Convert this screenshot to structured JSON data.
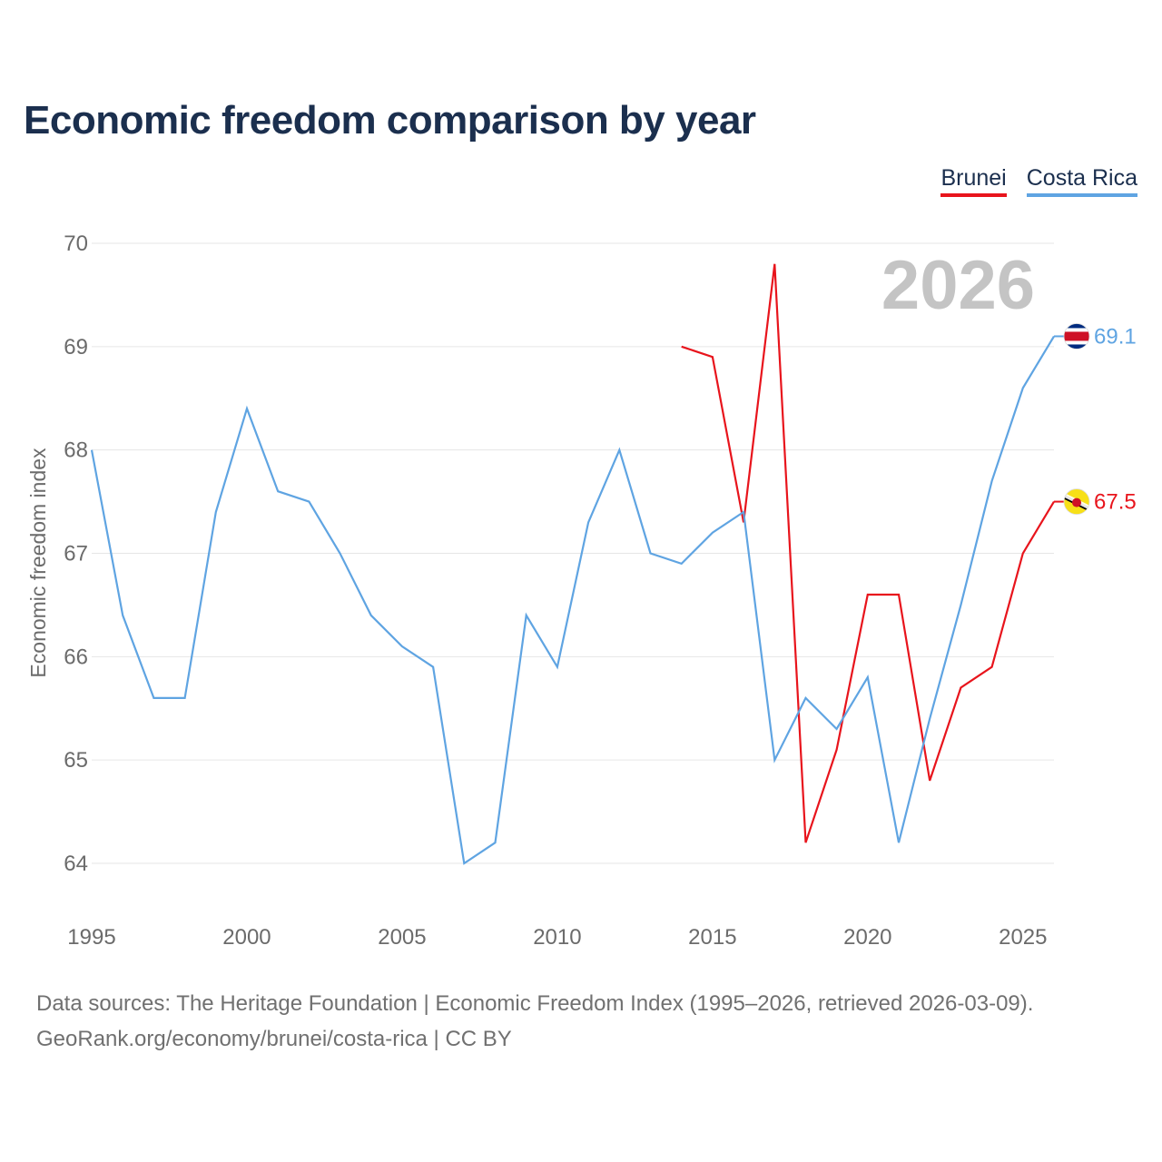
{
  "title": "Economic freedom comparison by year",
  "legend": {
    "brunei": "Brunei",
    "costa_rica": "Costa Rica"
  },
  "big_year": "2026",
  "footer": {
    "line1": "Data sources: The Heritage Foundation | Economic Freedom Index (1995–2026, retrieved 2026-03-09).",
    "line2": "GeoRank.org/economy/brunei/costa-rica | CC BY"
  },
  "colors": {
    "brunei": "#e8141c",
    "costa_rica": "#5fa4e2",
    "grid": "#e6e6e6",
    "title": "#1b2f4e"
  },
  "chart_data": {
    "type": "line",
    "title": "Economic freedom comparison by year",
    "xlabel": "",
    "ylabel": "Economic freedom index",
    "xlim": [
      1995,
      2026
    ],
    "ylim": [
      64,
      70
    ],
    "x_ticks": [
      "1995",
      "2000",
      "2005",
      "2010",
      "2015",
      "2020",
      "2025"
    ],
    "y_ticks": [
      "64",
      "65",
      "66",
      "67",
      "68",
      "69",
      "70"
    ],
    "grid": true,
    "legend_position": "top-right",
    "series": [
      {
        "name": "Brunei",
        "key": "brunei",
        "icon": "brunei-flag-icon",
        "end_label": "67.5",
        "x": [
          2014,
          2015,
          2016,
          2017,
          2018,
          2019,
          2020,
          2021,
          2022,
          2023,
          2024,
          2025,
          2026
        ],
        "values": [
          69.0,
          68.9,
          67.3,
          69.8,
          64.2,
          65.1,
          66.6,
          66.6,
          64.8,
          65.7,
          65.9,
          67.0,
          67.5
        ]
      },
      {
        "name": "Costa Rica",
        "key": "costa_rica",
        "icon": "costa-rica-flag-icon",
        "end_label": "69.1",
        "x": [
          1995,
          1996,
          1997,
          1998,
          1999,
          2000,
          2001,
          2002,
          2003,
          2004,
          2005,
          2006,
          2007,
          2008,
          2009,
          2010,
          2011,
          2012,
          2013,
          2014,
          2015,
          2016,
          2017,
          2018,
          2019,
          2020,
          2021,
          2022,
          2023,
          2024,
          2025,
          2026
        ],
        "values": [
          68.0,
          66.4,
          65.6,
          65.6,
          67.4,
          68.4,
          67.6,
          67.5,
          67.0,
          66.4,
          66.1,
          65.9,
          64.0,
          64.2,
          66.4,
          65.9,
          67.3,
          68.0,
          67.0,
          66.9,
          67.2,
          67.4,
          65.0,
          65.6,
          65.3,
          65.8,
          64.2,
          65.4,
          66.5,
          67.7,
          68.6,
          69.1
        ]
      }
    ]
  }
}
